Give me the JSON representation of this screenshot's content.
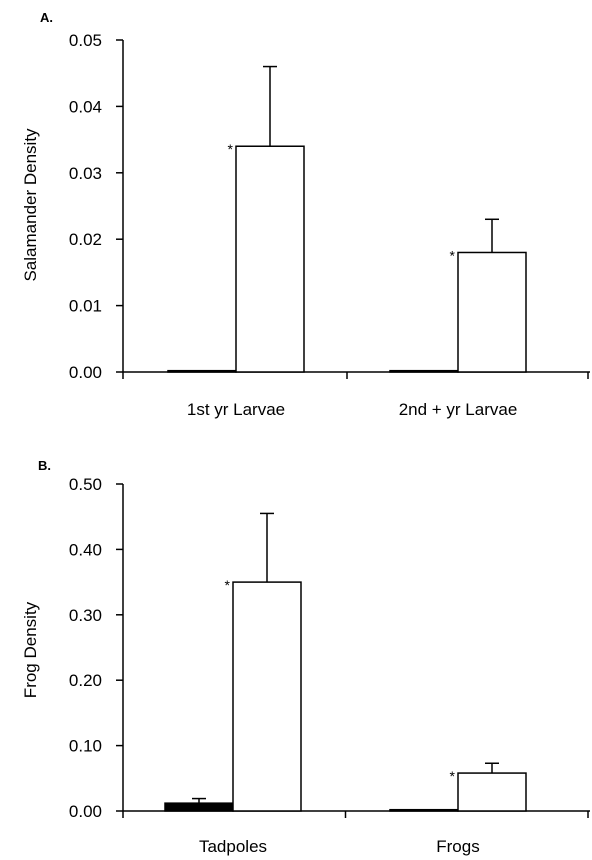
{
  "chart_data": [
    {
      "type": "bar",
      "panel_label": "A.",
      "ylabel": "Salamander Density",
      "categories": [
        "1st yr Larvae",
        "2nd + yr Larvae"
      ],
      "series": [
        {
          "values": [
            0.0002,
            0.0002
          ],
          "errors": [
            0.0,
            0.0
          ],
          "fill": "#000000"
        },
        {
          "values": [
            0.034,
            0.018
          ],
          "errors": [
            0.012,
            0.005
          ],
          "fill": "#ffffff"
        }
      ],
      "significance": [
        "*",
        "*"
      ],
      "ylim": [
        0,
        0.05
      ],
      "yticks": [
        "0.00",
        "0.01",
        "0.02",
        "0.03",
        "0.04",
        "0.05"
      ],
      "ytick_values": [
        0,
        0.01,
        0.02,
        0.03,
        0.04,
        0.05
      ],
      "grid": false,
      "legend": "none"
    },
    {
      "type": "bar",
      "panel_label": "B.",
      "ylabel": "Frog Density",
      "categories": [
        "Tadpoles",
        "Frogs"
      ],
      "series": [
        {
          "values": [
            0.012,
            0.002
          ],
          "errors": [
            0.007,
            0.0
          ],
          "fill": "#000000"
        },
        {
          "values": [
            0.35,
            0.058
          ],
          "errors": [
            0.105,
            0.015
          ],
          "fill": "#ffffff"
        }
      ],
      "significance": [
        "*",
        "*"
      ],
      "ylim": [
        0,
        0.5
      ],
      "yticks": [
        "0.00",
        "0.10",
        "0.20",
        "0.30",
        "0.40",
        "0.50"
      ],
      "ytick_values": [
        0,
        0.1,
        0.2,
        0.3,
        0.4,
        0.5
      ],
      "grid": false,
      "legend": "none"
    }
  ]
}
